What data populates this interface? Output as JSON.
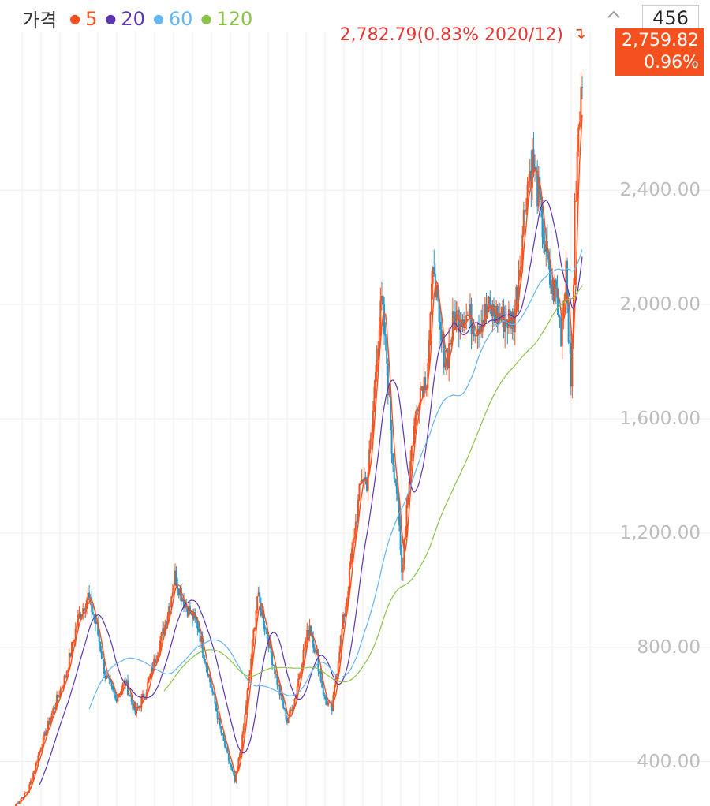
{
  "legend": {
    "title": "가격",
    "items": [
      {
        "label": "5",
        "color": "#f4511e"
      },
      {
        "label": "20",
        "color": "#5e35b1"
      },
      {
        "label": "60",
        "color": "#64b5f6"
      },
      {
        "label": "120",
        "color": "#8bc34a"
      }
    ]
  },
  "controls": {
    "collapse_icon": "chevron-up-icon",
    "count_value": "456"
  },
  "annotations": {
    "high_label": "2,782.79(0.83% 2020/12)",
    "last_price": "2,759.82",
    "last_change": "0.96%"
  },
  "colors": {
    "up": "#f4511e",
    "down": "#2196c9",
    "ma5": "#f4511e",
    "ma20": "#5e35b1",
    "ma60": "#64b5f6",
    "ma120": "#8bc34a",
    "grid": "#eeeeee",
    "axis_text": "#bdbdbd"
  },
  "chart_data": {
    "type": "line",
    "title": "가격",
    "ylim": [
      250,
      2900
    ],
    "yticks": [
      "400.00",
      "800.00",
      "1,200.00",
      "1,600.00",
      "2,000.00",
      "2,400.00"
    ],
    "ytick_values": [
      400,
      800,
      1200,
      1600,
      2000,
      2400
    ],
    "grid": true,
    "legend_position": "top-left",
    "n_points": 456,
    "anchors": [
      [
        0,
        250
      ],
      [
        10,
        300
      ],
      [
        20,
        450
      ],
      [
        30,
        580
      ],
      [
        40,
        700
      ],
      [
        50,
        900
      ],
      [
        58,
        980
      ],
      [
        65,
        870
      ],
      [
        72,
        700
      ],
      [
        80,
        620
      ],
      [
        88,
        680
      ],
      [
        96,
        570
      ],
      [
        104,
        640
      ],
      [
        112,
        760
      ],
      [
        120,
        880
      ],
      [
        128,
        1050
      ],
      [
        135,
        960
      ],
      [
        140,
        920
      ],
      [
        146,
        880
      ],
      [
        152,
        760
      ],
      [
        158,
        640
      ],
      [
        165,
        500
      ],
      [
        170,
        420
      ],
      [
        176,
        330
      ],
      [
        182,
        480
      ],
      [
        188,
        720
      ],
      [
        194,
        980
      ],
      [
        200,
        880
      ],
      [
        206,
        760
      ],
      [
        212,
        640
      ],
      [
        218,
        540
      ],
      [
        224,
        620
      ],
      [
        230,
        760
      ],
      [
        236,
        880
      ],
      [
        242,
        760
      ],
      [
        248,
        620
      ],
      [
        254,
        580
      ],
      [
        260,
        800
      ],
      [
        266,
        980
      ],
      [
        272,
        1200
      ],
      [
        278,
        1400
      ],
      [
        282,
        1380
      ],
      [
        286,
        1550
      ],
      [
        290,
        1850
      ],
      [
        294,
        2000
      ],
      [
        298,
        1800
      ],
      [
        302,
        1500
      ],
      [
        306,
        1350
      ],
      [
        310,
        1060
      ],
      [
        314,
        1300
      ],
      [
        318,
        1500
      ],
      [
        324,
        1700
      ],
      [
        330,
        1750
      ],
      [
        336,
        2150
      ],
      [
        340,
        1900
      ],
      [
        346,
        1800
      ],
      [
        352,
        1950
      ],
      [
        360,
        1970
      ],
      [
        370,
        1930
      ],
      [
        380,
        1980
      ],
      [
        390,
        1950
      ],
      [
        400,
        1950
      ],
      [
        405,
        2150
      ],
      [
        410,
        2400
      ],
      [
        415,
        2500
      ],
      [
        420,
        2380
      ],
      [
        425,
        2200
      ],
      [
        430,
        2050
      ],
      [
        434,
        2050
      ],
      [
        438,
        1900
      ],
      [
        442,
        2150
      ],
      [
        446,
        1700
      ],
      [
        449,
        2300
      ],
      [
        452,
        2600
      ],
      [
        455,
        2760
      ]
    ],
    "high_marker": {
      "value": 2782.79,
      "change": "0.83%",
      "date": "2020/12"
    },
    "last_value": 2759.82,
    "last_change_pct": 0.96,
    "series": [
      {
        "name": "5",
        "period": 5,
        "color": "#f4511e"
      },
      {
        "name": "20",
        "period": 20,
        "color": "#5e35b1"
      },
      {
        "name": "60",
        "period": 60,
        "color": "#64b5f6"
      },
      {
        "name": "120",
        "period": 120,
        "color": "#8bc34a"
      }
    ]
  }
}
